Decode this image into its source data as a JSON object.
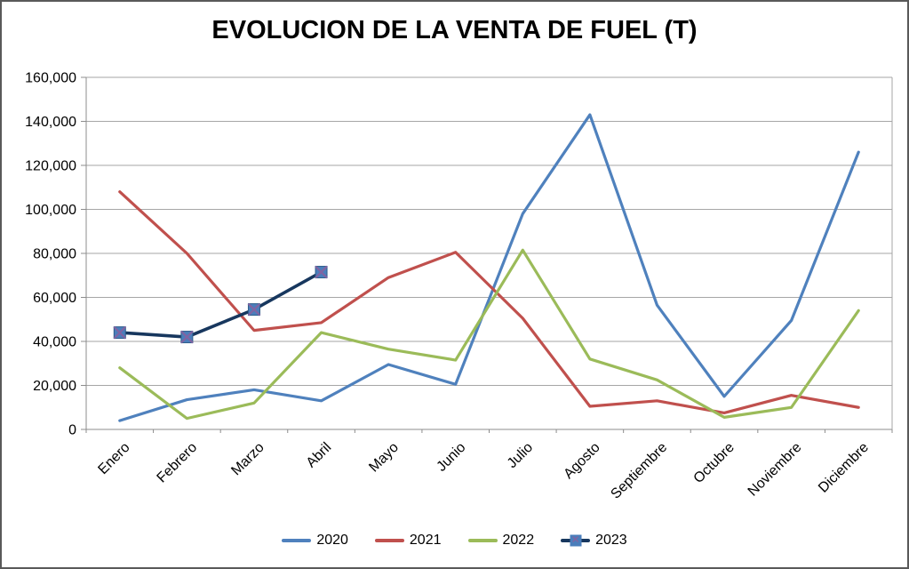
{
  "chart_data": {
    "type": "line",
    "title": "EVOLUCION DE LA VENTA DE FUEL (T)",
    "categories": [
      "Enero",
      "Febrero",
      "Marzo",
      "Abril",
      "Mayo",
      "Junio",
      "Julio",
      "Agosto",
      "Septiembre",
      "Octubre",
      "Noviembre",
      "Diciembre"
    ],
    "series": [
      {
        "name": "2020",
        "color": "#4F81BD",
        "marker": "none",
        "values": [
          4000,
          13500,
          18000,
          13000,
          29500,
          20500,
          98000,
          143000,
          56500,
          15000,
          49500,
          126000
        ]
      },
      {
        "name": "2021",
        "color": "#C0504D",
        "marker": "none",
        "values": [
          108000,
          80000,
          45000,
          48500,
          69000,
          80500,
          50500,
          10500,
          13000,
          7500,
          15500,
          10000
        ]
      },
      {
        "name": "2022",
        "color": "#9BBB59",
        "marker": "none",
        "values": [
          28000,
          5000,
          12000,
          44000,
          36500,
          31500,
          81500,
          32000,
          22500,
          5500,
          10000,
          54000
        ]
      },
      {
        "name": "2023",
        "color": "#17375E",
        "marker": "square-x",
        "marker_fill": "#4A7EBB",
        "marker_stroke": "#2E5C8A",
        "marker_x_color": "#8064A2",
        "values": [
          44000,
          42000,
          54500,
          71500
        ]
      }
    ],
    "ylim": [
      0,
      160000
    ],
    "y_tick_step": 20000,
    "y_tick_labels": [
      "0",
      "20,000",
      "40,000",
      "60,000",
      "80,000",
      "100,000",
      "120,000",
      "140,000",
      "160,000"
    ],
    "grid": "horizontal",
    "legend_position": "bottom",
    "x_label_rotation_deg": -45
  },
  "colors": {
    "background": "#FFFFFF",
    "frame_border": "#595959",
    "grid": "#A6A6A6",
    "axis": "#8C8C8C",
    "text": "#000000"
  },
  "legend_marker_glyph": "✕"
}
